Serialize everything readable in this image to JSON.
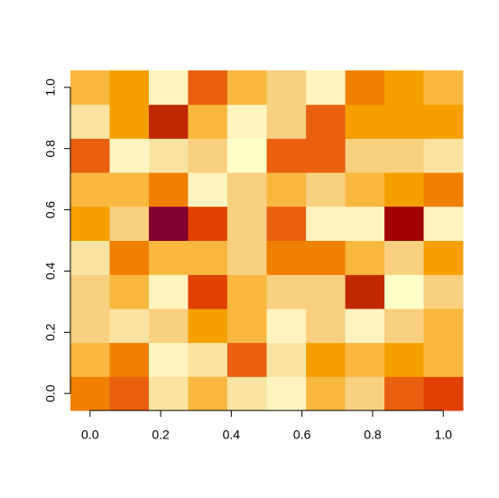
{
  "chart_data": {
    "type": "heatmap",
    "x": [
      0,
      0.111,
      0.222,
      0.333,
      0.444,
      0.556,
      0.667,
      0.778,
      0.889,
      1
    ],
    "y": [
      0,
      0.111,
      0.222,
      0.333,
      0.444,
      0.556,
      0.667,
      0.778,
      0.889,
      1
    ],
    "z": [
      [
        7,
        8,
        3,
        5,
        3,
        2,
        5,
        4,
        8,
        9
      ],
      [
        5,
        7,
        2,
        3,
        8,
        3,
        6,
        5,
        6,
        5
      ],
      [
        4,
        3,
        4,
        6,
        5,
        2,
        4,
        2,
        4,
        5
      ],
      [
        4,
        5,
        2,
        9,
        5,
        4,
        4,
        10,
        1,
        4
      ],
      [
        3,
        7,
        5,
        5,
        4,
        7,
        7,
        5,
        4,
        6
      ],
      [
        6,
        4,
        12,
        9,
        4,
        8,
        2,
        2,
        11,
        2
      ],
      [
        5,
        5,
        7,
        2,
        4,
        5,
        4,
        5,
        6,
        7
      ],
      [
        8,
        2,
        3,
        4,
        1,
        8,
        8,
        4,
        4,
        3
      ],
      [
        3,
        6,
        10,
        5,
        2,
        4,
        8,
        6,
        6,
        6
      ],
      [
        5,
        6,
        2,
        8,
        5,
        4,
        2,
        7,
        6,
        5
      ]
    ],
    "colors": [
      "#FFFFC8",
      "#FFF3C0",
      "#FAE3A0",
      "#F8D080",
      "#F8B840",
      "#F5A000",
      "#F08000",
      "#E86010",
      "#E04000",
      "#C02800",
      "#A00000",
      "#800030"
    ],
    "xlim": [
      -0.0556,
      1.0556
    ],
    "ylim": [
      -0.0556,
      1.0556
    ],
    "xticks": [
      {
        "value": 0,
        "label": "0.0"
      },
      {
        "value": 0.2,
        "label": "0.2"
      },
      {
        "value": 0.4,
        "label": "0.4"
      },
      {
        "value": 0.6,
        "label": "0.6"
      },
      {
        "value": 0.8,
        "label": "0.8"
      },
      {
        "value": 1,
        "label": "1.0"
      }
    ],
    "yticks": [
      {
        "value": 0,
        "label": "0.0"
      },
      {
        "value": 0.2,
        "label": "0.2"
      },
      {
        "value": 0.4,
        "label": "0.4"
      },
      {
        "value": 0.6,
        "label": "0.6"
      },
      {
        "value": 0.8,
        "label": "0.8"
      },
      {
        "value": 1,
        "label": "1.0"
      }
    ]
  }
}
